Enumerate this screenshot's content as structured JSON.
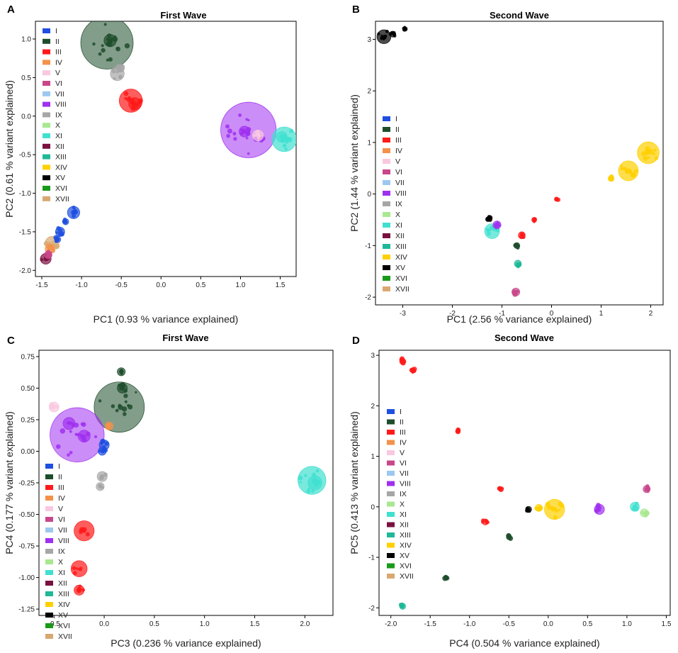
{
  "legend_colors": {
    "I": "#1f4fe0",
    "II": "#1e4d2b",
    "III": "#ff1a1a",
    "IV": "#f4914a",
    "V": "#f9c8e0",
    "VI": "#c9468a",
    "VII": "#9cc8f0",
    "VIII": "#a030f0",
    "IX": "#a6a6a6",
    "X": "#a8e890",
    "XI": "#40e0d0",
    "XII": "#7a1040",
    "XIII": "#1fb898",
    "XIV": "#ffd000",
    "XV": "#000000",
    "XVI": "#1a9a1a",
    "XVII": "#d9a870"
  },
  "chart_data": [
    {
      "panel": "A",
      "type": "scatter",
      "title": "First Wave",
      "xlabel": "PC1 (0.93 % variance explained)",
      "ylabel": "PC2 (0.61 % variant explained)",
      "xlim": [
        -1.58,
        1.7
      ],
      "ylim": [
        -2.08,
        1.23
      ],
      "xticks": [
        "-1.5",
        "-1.0",
        "-0.5",
        "0.0",
        "0.5",
        "1.0",
        "1.5"
      ],
      "yticks": [
        "-2.0",
        "-1.5",
        "-1.0",
        "-0.5",
        "0.0",
        "0.5",
        "1.0"
      ],
      "legend": [
        "I",
        "II",
        "III",
        "IV",
        "V",
        "VI",
        "VII",
        "VIII",
        "IX",
        "X",
        "XI",
        "XII",
        "XIII",
        "XIV",
        "XV",
        "XVI",
        "XVII"
      ],
      "legend_position": "top-left",
      "clusters": [
        {
          "group": "II",
          "x": -0.68,
          "y": 0.95,
          "size": 0.34
        },
        {
          "group": "II",
          "x": -0.64,
          "y": 0.98,
          "size": 0.08
        },
        {
          "group": "IX",
          "x": -0.55,
          "y": 0.55,
          "size": 0.09
        },
        {
          "group": "IX",
          "x": -0.51,
          "y": 0.62,
          "size": 0.05
        },
        {
          "group": "III",
          "x": -0.38,
          "y": 0.2,
          "size": 0.15
        },
        {
          "group": "III",
          "x": -0.33,
          "y": 0.16,
          "size": 0.08
        },
        {
          "group": "VIII",
          "x": 1.1,
          "y": -0.18,
          "size": 0.36
        },
        {
          "group": "V",
          "x": 1.22,
          "y": -0.25,
          "size": 0.07
        },
        {
          "group": "VIII",
          "x": 1.05,
          "y": -0.2,
          "size": 0.07
        },
        {
          "group": "XI",
          "x": 1.55,
          "y": -0.3,
          "size": 0.16
        },
        {
          "group": "XI",
          "x": 1.52,
          "y": -0.27,
          "size": 0.07
        },
        {
          "group": "I",
          "x": -1.1,
          "y": -1.25,
          "size": 0.08
        },
        {
          "group": "I",
          "x": -1.2,
          "y": -1.37,
          "size": 0.04
        },
        {
          "group": "I",
          "x": -1.27,
          "y": -1.5,
          "size": 0.06
        },
        {
          "group": "XVII",
          "x": -1.37,
          "y": -1.65,
          "size": 0.09
        },
        {
          "group": "I",
          "x": -1.3,
          "y": -1.6,
          "size": 0.04
        },
        {
          "group": "IV",
          "x": -1.4,
          "y": -1.72,
          "size": 0.06
        },
        {
          "group": "XII",
          "x": -1.45,
          "y": -1.85,
          "size": 0.07
        },
        {
          "group": "VI",
          "x": -1.42,
          "y": -1.8,
          "size": 0.05
        }
      ]
    },
    {
      "panel": "B",
      "type": "scatter",
      "title": "Second Wave",
      "xlabel": "PC1 (2.56 % variance explained)",
      "ylabel": "PC2 (1.44 % variant explained)",
      "xlim": [
        -3.55,
        2.25
      ],
      "ylim": [
        -2.15,
        3.35
      ],
      "xticks": [
        "-3",
        "-2",
        "-1",
        "0",
        "1",
        "2"
      ],
      "yticks": [
        "-2",
        "-1",
        "0",
        "1",
        "2",
        "3"
      ],
      "legend": [
        "I",
        "II",
        "III",
        "IV",
        "V",
        "VI",
        "VII",
        "VIII",
        "IX",
        "X",
        "XI",
        "XII",
        "XIII",
        "XIV",
        "XV",
        "XVI",
        "XVII"
      ],
      "legend_position": "center-left",
      "clusters": [
        {
          "group": "XV",
          "x": -3.38,
          "y": 3.05,
          "size": 0.14
        },
        {
          "group": "XV",
          "x": -3.2,
          "y": 3.1,
          "size": 0.06
        },
        {
          "group": "XV",
          "x": -2.95,
          "y": 3.2,
          "size": 0.03
        },
        {
          "group": "XIV",
          "x": 1.95,
          "y": 0.8,
          "size": 0.22
        },
        {
          "group": "XIV",
          "x": 1.55,
          "y": 0.45,
          "size": 0.2
        },
        {
          "group": "XIV",
          "x": 1.2,
          "y": 0.3,
          "size": 0.06
        },
        {
          "group": "XI",
          "x": -1.2,
          "y": -0.72,
          "size": 0.15
        },
        {
          "group": "VIII",
          "x": -1.1,
          "y": -0.6,
          "size": 0.08
        },
        {
          "group": "XV",
          "x": -1.25,
          "y": -0.48,
          "size": 0.05
        },
        {
          "group": "III",
          "x": -0.6,
          "y": -0.8,
          "size": 0.07
        },
        {
          "group": "II",
          "x": -0.7,
          "y": -1.0,
          "size": 0.06
        },
        {
          "group": "XIII",
          "x": -0.68,
          "y": -1.35,
          "size": 0.07
        },
        {
          "group": "VI",
          "x": -0.72,
          "y": -1.9,
          "size": 0.08
        },
        {
          "group": "III",
          "x": -0.35,
          "y": -0.5,
          "size": 0.05
        },
        {
          "group": "III",
          "x": 0.1,
          "y": -0.1,
          "size": 0.04
        }
      ]
    },
    {
      "panel": "C",
      "type": "scatter",
      "title": "First Wave",
      "xlabel": "PC3 (0.236 % variance explained)",
      "ylabel": "PC4 (0.177 % variant explained)",
      "xlim": [
        -0.65,
        2.28
      ],
      "ylim": [
        -1.3,
        0.8
      ],
      "xticks": [
        "-0.5",
        "0.0",
        "0.5",
        "1.0",
        "1.5",
        "2.0"
      ],
      "yticks": [
        "-1.25",
        "-1.00",
        "-0.75",
        "-0.50",
        "-0.25",
        "0.00",
        "0.25",
        "0.50",
        "0.75"
      ],
      "legend": [
        "I",
        "II",
        "III",
        "IV",
        "V",
        "VI",
        "VII",
        "VIII",
        "IX",
        "X",
        "XI",
        "XII",
        "XIII",
        "XIV",
        "XV",
        "XVI",
        "XVII"
      ],
      "legend_position": "bottom-left",
      "clusters": [
        {
          "group": "II",
          "x": 0.15,
          "y": 0.35,
          "size": 0.25
        },
        {
          "group": "II",
          "x": 0.17,
          "y": 0.63,
          "size": 0.04
        },
        {
          "group": "II",
          "x": 0.18,
          "y": 0.5,
          "size": 0.05
        },
        {
          "group": "VIII",
          "x": -0.27,
          "y": 0.13,
          "size": 0.27
        },
        {
          "group": "VIII",
          "x": -0.35,
          "y": 0.22,
          "size": 0.06
        },
        {
          "group": "VIII",
          "x": -0.2,
          "y": 0.12,
          "size": 0.06
        },
        {
          "group": "V",
          "x": -0.5,
          "y": 0.35,
          "size": 0.05
        },
        {
          "group": "IV",
          "x": 0.05,
          "y": 0.2,
          "size": 0.04
        },
        {
          "group": "I",
          "x": 0.0,
          "y": 0.05,
          "size": 0.05
        },
        {
          "group": "I",
          "x": -0.02,
          "y": 0.0,
          "size": 0.04
        },
        {
          "group": "IX",
          "x": -0.02,
          "y": -0.2,
          "size": 0.05
        },
        {
          "group": "IX",
          "x": -0.04,
          "y": -0.28,
          "size": 0.04
        },
        {
          "group": "III",
          "x": -0.2,
          "y": -0.63,
          "size": 0.1
        },
        {
          "group": "III",
          "x": -0.25,
          "y": -0.93,
          "size": 0.08
        },
        {
          "group": "III",
          "x": -0.25,
          "y": -1.1,
          "size": 0.05
        },
        {
          "group": "XI",
          "x": 2.07,
          "y": -0.23,
          "size": 0.14
        },
        {
          "group": "XI",
          "x": 2.1,
          "y": -0.25,
          "size": 0.07
        }
      ]
    },
    {
      "panel": "D",
      "type": "scatter",
      "title": "Second Wave",
      "xlabel": "PC4 (0.504 % variance explained)",
      "ylabel": "PC5 (0.413 % variant explained)",
      "xlim": [
        -2.15,
        1.55
      ],
      "ylim": [
        -2.15,
        3.1
      ],
      "xticks": [
        "-2.0",
        "-1.5",
        "-1.0",
        "-0.5",
        "0.0",
        "0.5",
        "1.0",
        "1.5"
      ],
      "yticks": [
        "-2",
        "-1",
        "0",
        "1",
        "2",
        "3"
      ],
      "legend": [
        "I",
        "II",
        "III",
        "IV",
        "V",
        "VI",
        "VII",
        "VIII",
        "IX",
        "X",
        "XI",
        "XII",
        "XIII",
        "XIV",
        "XV",
        "XVI",
        "XVII"
      ],
      "legend_position": "center-left",
      "clusters": [
        {
          "group": "III",
          "x": -1.85,
          "y": 2.88,
          "size": 0.06
        },
        {
          "group": "III",
          "x": -1.72,
          "y": 2.7,
          "size": 0.05
        },
        {
          "group": "III",
          "x": -1.15,
          "y": 1.5,
          "size": 0.04
        },
        {
          "group": "III",
          "x": -0.6,
          "y": 0.35,
          "size": 0.05
        },
        {
          "group": "XIV",
          "x": 0.08,
          "y": -0.05,
          "size": 0.2
        },
        {
          "group": "XIV",
          "x": -0.12,
          "y": -0.02,
          "size": 0.07
        },
        {
          "group": "XV",
          "x": -0.25,
          "y": -0.05,
          "size": 0.06
        },
        {
          "group": "VIII",
          "x": 0.65,
          "y": -0.05,
          "size": 0.1
        },
        {
          "group": "XI",
          "x": 1.1,
          "y": 0.0,
          "size": 0.09
        },
        {
          "group": "X",
          "x": 1.22,
          "y": -0.12,
          "size": 0.08
        },
        {
          "group": "VI",
          "x": 1.25,
          "y": 0.35,
          "size": 0.07
        },
        {
          "group": "III",
          "x": -0.8,
          "y": -0.3,
          "size": 0.06
        },
        {
          "group": "II",
          "x": -0.5,
          "y": -0.6,
          "size": 0.05
        },
        {
          "group": "XIII",
          "x": -1.85,
          "y": -1.97,
          "size": 0.06
        },
        {
          "group": "II",
          "x": -1.3,
          "y": -1.4,
          "size": 0.03
        }
      ]
    }
  ]
}
